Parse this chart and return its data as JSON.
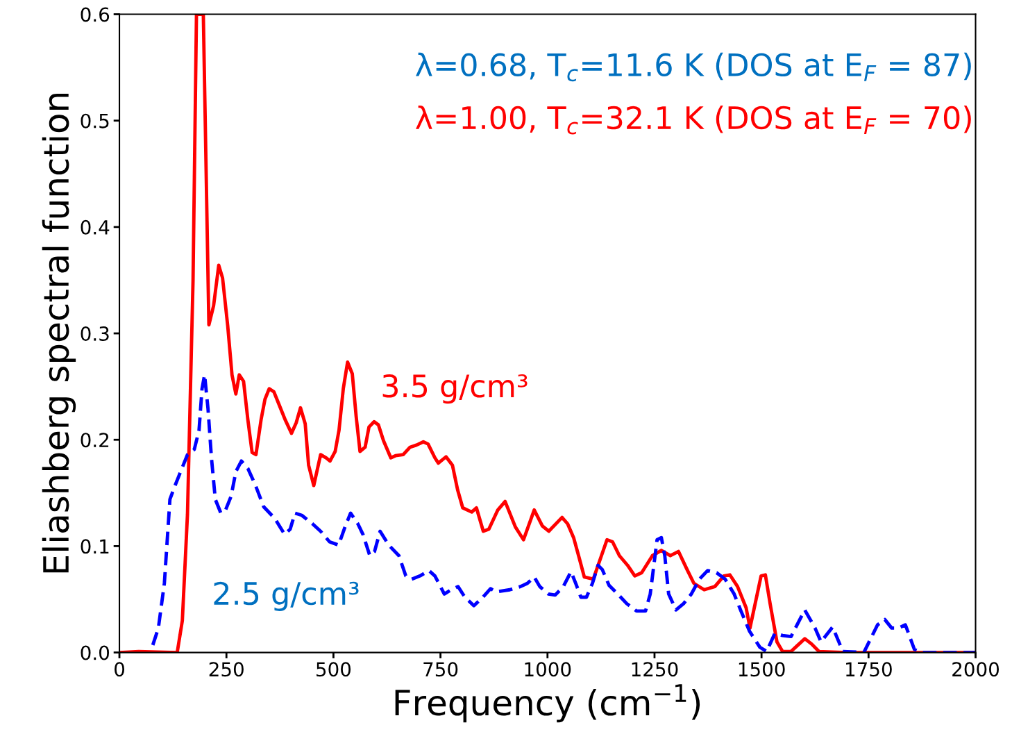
{
  "chart_data": {
    "type": "line",
    "xlabel": "Frequency (cm$^{−1}$)",
    "ylabel": "Eliashberg spectral function",
    "xlim": [
      0,
      2000
    ],
    "xticks": [
      0,
      250,
      500,
      750,
      1000,
      1250,
      1500,
      1750,
      2000
    ],
    "ylim": [
      0.0,
      0.6
    ],
    "yticks": [
      {
        "value": 0,
        "label": "0.0"
      },
      0.1,
      0.2,
      0.3,
      0.4,
      0.5,
      0.6
    ],
    "grid": false,
    "legend": false,
    "annotations": [
      "λ=0.68, T$_{c}$=11.6 K (DOS at E$_{F}$ = 87)",
      "λ=1.00, T$_{c}$=32.1 K (DOS at E$_{F}$ = 70)"
    ],
    "series": [
      {
        "name": "3.5 g/cm³",
        "color": "#ff0000",
        "line_style": "solid",
        "x": [
          0,
          45,
          135,
          147,
          159,
          172,
          180,
          196,
          209,
          220,
          232,
          241,
          253,
          263,
          272,
          280,
          290,
          300,
          310,
          319,
          331,
          340,
          350,
          361,
          374,
          387,
          402,
          413,
          423,
          434,
          442,
          454,
          470,
          483,
          492,
          504,
          513,
          523,
          533,
          544,
          553,
          562,
          574,
          583,
          595,
          605,
          617,
          634,
          645,
          663,
          679,
          694,
          710,
          721,
          737,
          745,
          763,
          778,
          790,
          802,
          823,
          834,
          850,
          863,
          884,
          901,
          925,
          944,
          969,
          988,
          1003,
          1034,
          1047,
          1061,
          1074,
          1086,
          1107,
          1126,
          1139,
          1152,
          1168,
          1187,
          1204,
          1220,
          1245,
          1266,
          1287,
          1306,
          1326,
          1342,
          1366,
          1391,
          1412,
          1426,
          1444,
          1464,
          1473,
          1499,
          1509,
          1520,
          1536,
          1549,
          1569,
          1585,
          1601,
          1617,
          1634,
          1698,
          2000
        ],
        "values": [
          0,
          0.001,
          0,
          0.03,
          0.13,
          0.35,
          0.6,
          0.6,
          0.308,
          0.326,
          0.364,
          0.352,
          0.307,
          0.261,
          0.243,
          0.261,
          0.255,
          0.219,
          0.188,
          0.186,
          0.219,
          0.238,
          0.248,
          0.245,
          0.232,
          0.219,
          0.206,
          0.216,
          0.23,
          0.215,
          0.176,
          0.157,
          0.186,
          0.183,
          0.18,
          0.189,
          0.209,
          0.248,
          0.273,
          0.262,
          0.222,
          0.189,
          0.193,
          0.212,
          0.217,
          0.214,
          0.199,
          0.183,
          0.185,
          0.186,
          0.193,
          0.195,
          0.198,
          0.196,
          0.183,
          0.178,
          0.184,
          0.176,
          0.153,
          0.136,
          0.132,
          0.136,
          0.114,
          0.116,
          0.134,
          0.142,
          0.118,
          0.106,
          0.134,
          0.119,
          0.114,
          0.127,
          0.121,
          0.108,
          0.089,
          0.071,
          0.069,
          0.091,
          0.106,
          0.104,
          0.091,
          0.082,
          0.072,
          0.075,
          0.091,
          0.096,
          0.091,
          0.095,
          0.078,
          0.065,
          0.059,
          0.062,
          0.072,
          0.073,
          0.062,
          0.042,
          0.023,
          0.072,
          0.073,
          0.046,
          0.01,
          0.001,
          0.001,
          0.007,
          0.013,
          0.008,
          0.001,
          0,
          0
        ]
      },
      {
        "name": "2.5 g/cm³",
        "color": "#0000ff",
        "line_style": "dashed",
        "x": [
          78,
          91,
          105,
          118,
          130,
          143,
          159,
          175,
          186,
          193,
          199,
          207,
          215,
          224,
          237,
          248,
          261,
          272,
          285,
          300,
          318,
          337,
          363,
          386,
          399,
          410,
          426,
          451,
          470,
          491,
          512,
          527,
          540,
          557,
          569,
          585,
          596,
          609,
          629,
          653,
          669,
          683,
          702,
          723,
          737,
          759,
          775,
          791,
          807,
          828,
          849,
          867,
          880,
          912,
          937,
          953,
          969,
          982,
          1002,
          1018,
          1037,
          1055,
          1066,
          1078,
          1091,
          1105,
          1118,
          1128,
          1144,
          1164,
          1185,
          1208,
          1229,
          1240,
          1256,
          1266,
          1274,
          1283,
          1300,
          1318,
          1336,
          1355,
          1374,
          1395,
          1415,
          1436,
          1452,
          1472,
          1496,
          1512,
          1531,
          1549,
          1569,
          1601,
          1625,
          1639,
          1666,
          1690,
          1739,
          1771,
          1788,
          1804,
          1820,
          1836,
          1857,
          1877,
          2000
        ],
        "values": [
          0.007,
          0.023,
          0.065,
          0.144,
          0.157,
          0.17,
          0.186,
          0.191,
          0.209,
          0.248,
          0.261,
          0.229,
          0.183,
          0.144,
          0.131,
          0.134,
          0.147,
          0.17,
          0.18,
          0.173,
          0.157,
          0.137,
          0.126,
          0.111,
          0.116,
          0.131,
          0.129,
          0.121,
          0.114,
          0.104,
          0.101,
          0.118,
          0.131,
          0.121,
          0.111,
          0.091,
          0.095,
          0.114,
          0.101,
          0.091,
          0.072,
          0.069,
          0.072,
          0.077,
          0.072,
          0.055,
          0.059,
          0.062,
          0.052,
          0.044,
          0.052,
          0.06,
          0.057,
          0.059,
          0.062,
          0.065,
          0.071,
          0.062,
          0.055,
          0.054,
          0.062,
          0.076,
          0.065,
          0.052,
          0.052,
          0.065,
          0.082,
          0.078,
          0.063,
          0.055,
          0.046,
          0.039,
          0.039,
          0.055,
          0.106,
          0.108,
          0.091,
          0.055,
          0.04,
          0.046,
          0.055,
          0.069,
          0.077,
          0.075,
          0.069,
          0.055,
          0.039,
          0.02,
          0.005,
          0.001,
          0.018,
          0.016,
          0.015,
          0.04,
          0.023,
          0.01,
          0.024,
          0.001,
          0,
          0.026,
          0.031,
          0.023,
          0.023,
          0.026,
          0.003,
          0,
          0
        ]
      }
    ]
  }
}
